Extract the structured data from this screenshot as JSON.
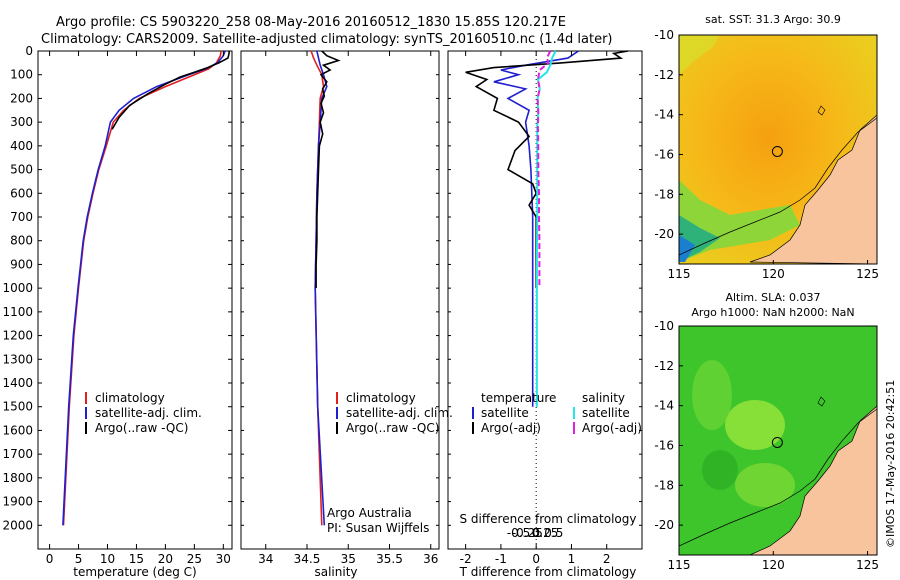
{
  "title": {
    "line1": "Argo profile: CS 5903220_258 08-May-2016 20160512_1830 15.85S 120.217E",
    "line2": "Climatology: CARS2009. Satellite-adjusted climatology: synTS_20160510.nc (1.4d later)"
  },
  "stamp": "©IMOS 17-May-2016 20:42:51",
  "colors": {
    "climatology": "#e02020",
    "satellite": "#1f1fd0",
    "argo": "#000000",
    "sat_salinity": "#22e8e8",
    "argo_salinity": "#e020e0",
    "land": "#f7c49e"
  },
  "chart_data": [
    {
      "type": "line",
      "name": "temperature",
      "xlabel": "temperature (deg C)",
      "ylabel": "",
      "xlim": [
        -2,
        31.5
      ],
      "ylim": [
        0,
        2100
      ],
      "xticks": [
        0,
        5,
        10,
        15,
        20,
        25,
        30
      ],
      "yticks": [
        0,
        100,
        200,
        300,
        400,
        500,
        600,
        700,
        800,
        900,
        1000,
        1100,
        1200,
        1300,
        1400,
        1500,
        1600,
        1700,
        1800,
        1900,
        2000
      ],
      "legend": [
        "climatology",
        "satellite-adj. clim.",
        "Argo(..raw -QC)"
      ],
      "series": [
        {
          "name": "climatology",
          "color": "#e02020",
          "depth": [
            0,
            20,
            50,
            75,
            100,
            150,
            200,
            250,
            300,
            400,
            500,
            600,
            700,
            800,
            1000,
            1200,
            1500,
            2000
          ],
          "values": [
            29.6,
            29.5,
            28.8,
            27.5,
            25.0,
            20.0,
            15.5,
            12.8,
            11.0,
            9.8,
            8.5,
            7.5,
            6.6,
            5.9,
            5.0,
            4.2,
            3.4,
            2.4
          ]
        },
        {
          "name": "satellite-adj. clim.",
          "color": "#1f1fd0",
          "depth": [
            0,
            20,
            50,
            75,
            100,
            150,
            200,
            250,
            300,
            400,
            500,
            600,
            700,
            800,
            1000,
            1200,
            1500,
            2000
          ],
          "values": [
            30.3,
            30.0,
            29.0,
            27.0,
            24.0,
            18.5,
            14.5,
            12.0,
            10.5,
            9.6,
            8.4,
            7.4,
            6.5,
            5.8,
            4.9,
            4.1,
            3.3,
            2.3
          ]
        },
        {
          "name": "Argo(..raw -QC)",
          "color": "#000000",
          "depth": [
            0,
            10,
            30,
            50,
            70,
            90,
            110,
            140,
            180,
            230,
            280,
            330
          ],
          "values": [
            31.0,
            31.0,
            30.8,
            29.2,
            27.3,
            25.0,
            22.5,
            20.0,
            17.0,
            13.8,
            12.0,
            10.8
          ]
        }
      ]
    },
    {
      "type": "line",
      "name": "salinity",
      "xlabel": "salinity",
      "ylabel": "",
      "xlim": [
        33.7,
        36.1
      ],
      "ylim": [
        0,
        2100
      ],
      "xticks": [
        34,
        34.5,
        35,
        35.5,
        36
      ],
      "legend": [
        "climatology",
        "satellite-adj. clim.",
        "Argo(..raw -QC)"
      ],
      "annotation": [
        "Argo Australia",
        "PI: Susan Wijffels"
      ],
      "series": [
        {
          "name": "climatology",
          "color": "#e02020",
          "depth": [
            0,
            30,
            60,
            100,
            150,
            200,
            300,
            400,
            600,
            800,
            1000,
            1500,
            2000
          ],
          "values": [
            34.55,
            34.58,
            34.62,
            34.68,
            34.7,
            34.66,
            34.65,
            34.64,
            34.62,
            34.61,
            34.6,
            34.63,
            34.68
          ]
        },
        {
          "name": "satellite-adj. clim.",
          "color": "#1f1fd0",
          "depth": [
            0,
            30,
            60,
            100,
            150,
            200,
            300,
            400,
            600,
            800,
            1000,
            1500,
            2000
          ],
          "values": [
            34.62,
            34.64,
            34.66,
            34.7,
            34.74,
            34.68,
            34.66,
            34.64,
            34.62,
            34.61,
            34.6,
            34.63,
            34.71
          ]
        },
        {
          "name": "Argo(..raw -QC)",
          "color": "#000000",
          "depth": [
            0,
            20,
            40,
            60,
            80,
            100,
            130,
            160,
            190,
            220,
            260,
            300,
            350,
            400,
            500,
            600,
            700,
            800,
            900,
            1000
          ],
          "values": [
            34.68,
            34.74,
            34.88,
            34.7,
            34.78,
            34.67,
            34.74,
            34.69,
            34.71,
            34.67,
            34.7,
            34.66,
            34.69,
            34.65,
            34.64,
            34.63,
            34.62,
            34.62,
            34.61,
            34.61
          ]
        }
      ]
    },
    {
      "type": "line",
      "name": "difference",
      "xlabel": "T difference from climatology",
      "top_xlabel": "S difference from climatology",
      "xlim": [
        -2.5,
        3.0
      ],
      "ylim": [
        0,
        2100
      ],
      "xticks": [
        -2,
        -1,
        0,
        1,
        2
      ],
      "top_xticks": [
        "-0.5",
        "-0.25",
        "0",
        "0.25",
        "0.5"
      ],
      "top_xtick_values": [
        -0.5,
        -0.25,
        0,
        0.25,
        0.5
      ],
      "legend_left": {
        "heading": "temperature",
        "items": [
          "satellite",
          "Argo(-adj)"
        ]
      },
      "legend_right": {
        "heading": "salinity",
        "items": [
          "satellite",
          "Argo(-adj)"
        ]
      },
      "series": [
        {
          "name": "T satellite",
          "color": "#1f1fd0",
          "depth": [
            0,
            30,
            60,
            80,
            100,
            130,
            160,
            200,
            250,
            300,
            400,
            500,
            700,
            1000,
            1500
          ],
          "values": [
            1.2,
            0.9,
            -0.3,
            -1.0,
            -0.5,
            -1.2,
            -0.3,
            -0.8,
            -0.2,
            -0.3,
            -0.2,
            -0.15,
            -0.1,
            -0.1,
            -0.1
          ]
        },
        {
          "name": "T Argo(-adj)",
          "color": "#000000",
          "depth": [
            0,
            10,
            30,
            50,
            70,
            90,
            120,
            150,
            200,
            250,
            300,
            360,
            420,
            500,
            560,
            600,
            650,
            700,
            800,
            900,
            1000
          ],
          "values": [
            2.6,
            2.2,
            2.4,
            0.7,
            -1.2,
            -2.0,
            -1.4,
            -1.7,
            -1.1,
            -1.2,
            -0.5,
            -0.2,
            -0.6,
            -0.8,
            -0.1,
            0.0,
            -0.2,
            0.0,
            0.0,
            0.0,
            0.0
          ]
        },
        {
          "name": "S satellite",
          "color": "#22e8e8",
          "depth": [
            0,
            30,
            60,
            90,
            120,
            160,
            200,
            260,
            320,
            400,
            500,
            700,
            900,
            1100,
            1300,
            1500
          ],
          "values": [
            0.55,
            0.45,
            0.4,
            0.3,
            0.05,
            0.1,
            0.04,
            0.06,
            0.03,
            0.03,
            0.03,
            0.03,
            0.02,
            0.02,
            0.02,
            0.02
          ]
        },
        {
          "name": "S Argo(-adj)",
          "color": "#e020e0",
          "depth": [
            0,
            30,
            50,
            80,
            120,
            160,
            200,
            260,
            320,
            400,
            500,
            600,
            700,
            800,
            900,
            1000
          ],
          "values": [
            0.4,
            0.3,
            0.35,
            0.1,
            0.05,
            0.1,
            0.04,
            0.06,
            0.05,
            0.06,
            0.06,
            0.08,
            0.08,
            0.09,
            0.09,
            0.09
          ]
        }
      ]
    },
    {
      "type": "heatmap",
      "name": "sst_map",
      "title": "sat. SST: 31.3  Argo: 30.9",
      "xlim": [
        115,
        125.5
      ],
      "ylim": [
        -21.5,
        -10
      ],
      "xticks": [
        115,
        120,
        125
      ],
      "yticks": [
        -10,
        -12,
        -14,
        -16,
        -18,
        -20
      ],
      "profile_location": {
        "lon": 120.217,
        "lat": -15.85
      }
    },
    {
      "type": "heatmap",
      "name": "sla_map",
      "title_line1": "Altim. SLA: 0.037",
      "title_line2": "Argo h1000: NaN h2000: NaN",
      "xlim": [
        115,
        125.5
      ],
      "ylim": [
        -21.5,
        -10
      ],
      "xticks": [
        115,
        120,
        125
      ],
      "yticks": [
        -10,
        -12,
        -14,
        -16,
        -18,
        -20
      ],
      "profile_location": {
        "lon": 120.217,
        "lat": -15.85
      }
    }
  ]
}
